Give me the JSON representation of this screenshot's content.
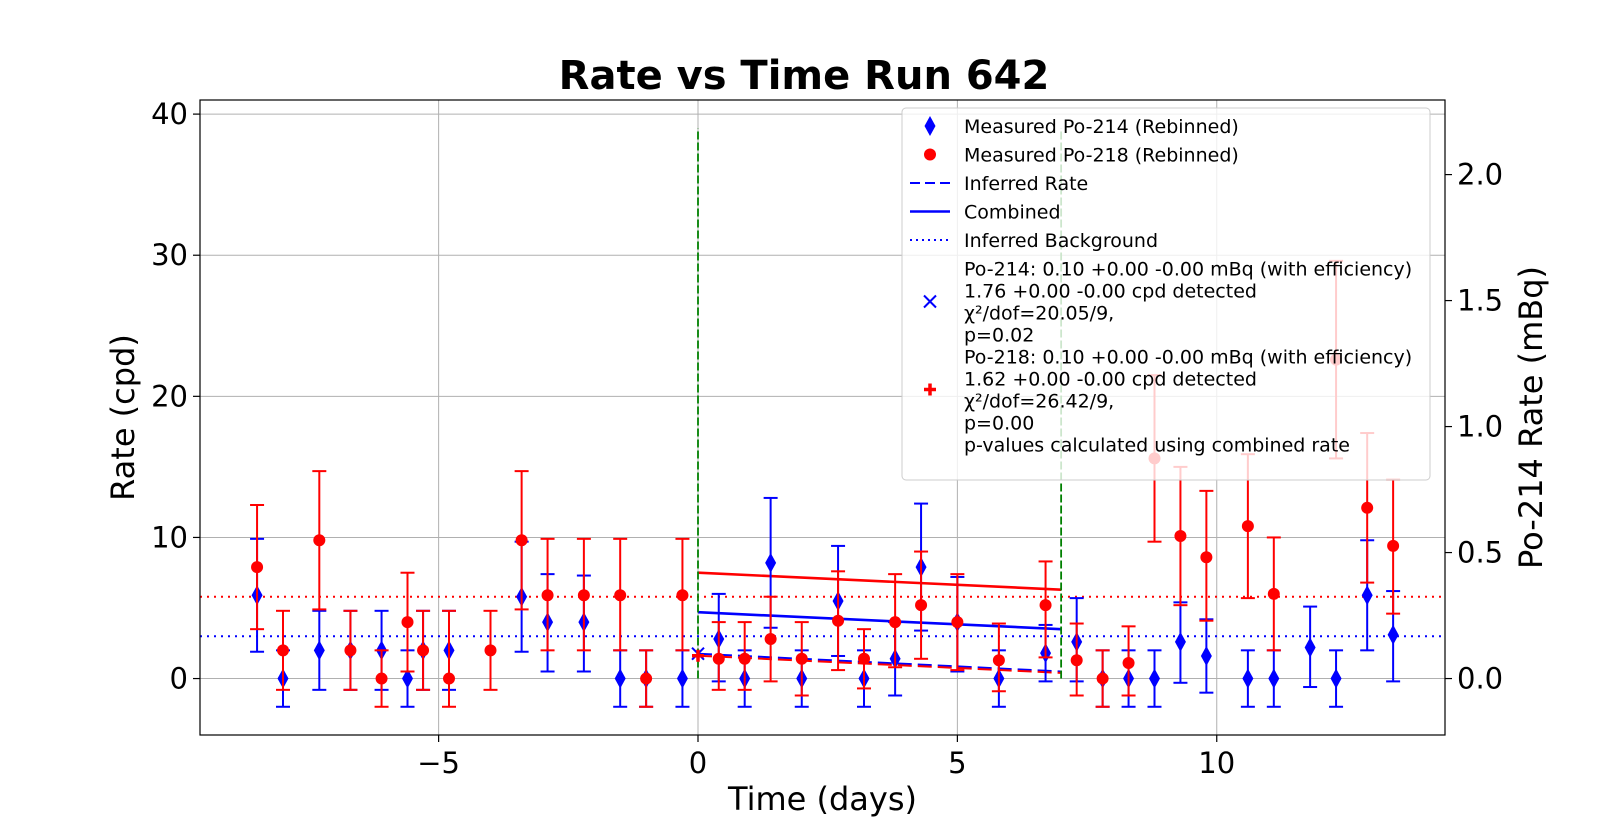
{
  "chart_data": {
    "type": "scatter",
    "title": "Rate vs Time Run 642",
    "xlabel": "Time (days)",
    "ylabel": "Rate (cpd)",
    "y2label": "Po-214 Rate (mBq)",
    "xlim": [
      -9.6,
      14.4
    ],
    "ylim": [
      -4,
      41
    ],
    "y2lim": [
      -0.224,
      2.296
    ],
    "xticks": [
      -5,
      0,
      5,
      10
    ],
    "xtick_labels": [
      "−5",
      "0",
      "5",
      "10"
    ],
    "yticks": [
      0,
      10,
      20,
      30,
      40
    ],
    "ytick_labels": [
      "0",
      "10",
      "20",
      "30",
      "40"
    ],
    "y2ticks": [
      0.0,
      0.5,
      1.0,
      1.5,
      2.0
    ],
    "y2tick_labels": [
      "0.0",
      "0.5",
      "1.0",
      "1.5",
      "2.0"
    ],
    "grid": true,
    "legend_position": "upper right",
    "series": [
      {
        "name": "Measured Po-214 (Rebinned)",
        "color": "#0000ff",
        "marker": "diamond",
        "x": [
          -8.5,
          -8.0,
          -7.3,
          -6.7,
          -6.1,
          -5.6,
          -5.3,
          -4.8,
          -3.4,
          -2.9,
          -2.2,
          -1.5,
          -1.0,
          -0.3,
          0.4,
          0.9,
          1.4,
          2.0,
          2.7,
          3.2,
          3.8,
          4.3,
          5.0,
          5.8,
          6.7,
          7.3,
          7.8,
          8.3,
          8.8,
          9.3,
          9.8,
          10.6,
          11.1,
          11.8,
          12.3,
          12.9,
          13.4
        ],
        "y": [
          5.9,
          0.0,
          2.0,
          2.0,
          2.0,
          0.0,
          2.0,
          2.0,
          5.8,
          4.0,
          4.0,
          0.0,
          0.0,
          0.0,
          2.8,
          0.0,
          8.2,
          0.0,
          5.5,
          0.0,
          1.4,
          7.9,
          4.0,
          0.0,
          1.8,
          2.6,
          0.0,
          0.0,
          0.0,
          2.6,
          1.6,
          0.0,
          0.0,
          2.2,
          0.0,
          5.9,
          3.1
        ],
        "yerr_low": [
          4.0,
          2.0,
          2.8,
          2.8,
          2.8,
          2.0,
          2.8,
          2.8,
          3.9,
          3.5,
          3.5,
          2.0,
          2.0,
          2.0,
          3.0,
          2.0,
          4.6,
          2.0,
          3.9,
          2.0,
          2.6,
          4.5,
          3.5,
          2.0,
          2.0,
          2.8,
          2.0,
          2.0,
          2.0,
          2.9,
          2.6,
          2.0,
          2.0,
          2.8,
          2.0,
          3.9,
          3.3
        ],
        "yerr_high": [
          4.0,
          2.0,
          2.8,
          2.8,
          2.8,
          2.0,
          2.8,
          2.8,
          3.9,
          3.4,
          3.3,
          2.0,
          2.0,
          2.0,
          3.2,
          2.0,
          4.6,
          2.0,
          3.9,
          2.0,
          2.6,
          4.5,
          3.2,
          2.0,
          2.0,
          3.1,
          2.0,
          2.0,
          2.0,
          2.8,
          2.6,
          2.0,
          2.0,
          2.9,
          2.0,
          3.9,
          3.1
        ]
      },
      {
        "name": "Measured Po-218 (Rebinned)",
        "color": "#ff0000",
        "marker": "circle",
        "x": [
          -8.5,
          -8.0,
          -7.3,
          -6.7,
          -6.1,
          -5.6,
          -5.3,
          -4.8,
          -4.0,
          -3.4,
          -2.9,
          -2.2,
          -1.5,
          -1.0,
          -0.3,
          0.4,
          0.9,
          1.4,
          2.0,
          2.7,
          3.2,
          3.8,
          4.3,
          5.0,
          5.8,
          6.7,
          7.3,
          7.8,
          8.3,
          8.8,
          9.3,
          9.8,
          10.6,
          11.1,
          12.3,
          12.9,
          13.4
        ],
        "y": [
          7.9,
          2.0,
          9.8,
          2.0,
          0.0,
          4.0,
          2.0,
          0.0,
          2.0,
          9.8,
          5.9,
          5.9,
          5.9,
          0.0,
          5.9,
          1.4,
          1.4,
          2.8,
          1.4,
          4.1,
          1.4,
          4.0,
          5.2,
          4.0,
          1.3,
          5.2,
          1.3,
          0.0,
          1.1,
          15.6,
          10.1,
          8.6,
          10.8,
          6.0,
          22.6,
          12.1,
          9.4
        ],
        "yerr_low": [
          4.4,
          2.8,
          4.9,
          2.8,
          2.0,
          3.5,
          2.8,
          2.0,
          2.8,
          4.9,
          3.9,
          3.9,
          3.9,
          2.0,
          3.9,
          2.2,
          2.2,
          3.0,
          2.6,
          3.5,
          2.1,
          3.2,
          3.8,
          3.4,
          2.2,
          3.7,
          2.5,
          2.0,
          2.3,
          5.9,
          4.9,
          4.5,
          5.1,
          4.0,
          7.0,
          5.3,
          4.8
        ],
        "yerr_high": [
          4.4,
          2.8,
          4.9,
          2.8,
          2.0,
          3.5,
          2.8,
          4.8,
          2.8,
          4.9,
          4.0,
          4.0,
          4.0,
          2.0,
          4.0,
          2.6,
          2.6,
          3.0,
          2.6,
          3.5,
          2.1,
          3.4,
          3.8,
          3.4,
          2.6,
          3.1,
          2.6,
          2.0,
          2.6,
          5.9,
          4.9,
          4.7,
          5.1,
          4.0,
          7.0,
          5.3,
          4.7
        ]
      }
    ],
    "lines": [
      {
        "name": "Inferred Rate",
        "color": "#0000ff",
        "style": "dashed",
        "x": [
          0,
          7
        ],
        "y": [
          1.76,
          0.5
        ]
      },
      {
        "name": "Inferred Rate",
        "color": "#ff0000",
        "style": "dashed",
        "x": [
          0,
          7
        ],
        "y": [
          1.62,
          0.4
        ]
      },
      {
        "name": "Combined",
        "color": "#0000ff",
        "style": "solid",
        "x": [
          0,
          7
        ],
        "y": [
          4.7,
          3.5
        ]
      },
      {
        "name": "Combined",
        "color": "#ff0000",
        "style": "solid",
        "x": [
          0,
          7
        ],
        "y": [
          7.5,
          6.3
        ]
      },
      {
        "name": "Inferred Background",
        "color": "#0000ff",
        "style": "dotted",
        "y_const": 3.0
      },
      {
        "name": "Inferred Background",
        "color": "#ff0000",
        "style": "dotted",
        "y_const": 5.8
      }
    ],
    "vlines": [
      {
        "x": 0,
        "color": "#008000",
        "style": "dashed",
        "y_range": [
          0,
          39
        ]
      },
      {
        "x": 7,
        "color": "#008000",
        "style": "dashed",
        "y_range": [
          0,
          39
        ]
      }
    ],
    "fit_points": [
      {
        "x": 0,
        "y": 1.76,
        "color": "#0000ff",
        "marker": "x"
      },
      {
        "x": 0,
        "y": 1.62,
        "color": "#ff0000",
        "marker": "plus"
      }
    ],
    "legend": [
      {
        "label": "Measured Po-214 (Rebinned)",
        "kind": "diamond",
        "color": "#0000ff"
      },
      {
        "label": "Measured Po-218 (Rebinned)",
        "kind": "circle",
        "color": "#ff0000"
      },
      {
        "label": "Inferred Rate",
        "kind": "dashed",
        "color": "#0000ff"
      },
      {
        "label": "Combined",
        "kind": "solid",
        "color": "#0000ff"
      },
      {
        "label": "Inferred Background",
        "kind": "dotted",
        "color": "#0000ff"
      },
      {
        "lines": [
          "Po-214: 0.10 +0.00 -0.00 mBq (with efficiency)",
          " 1.76 +0.00 -0.00 cpd detected",
          "χ²/dof=20.05/9,",
          "p=0.02"
        ],
        "kind": "x",
        "color": "#0000ff"
      },
      {
        "lines": [
          "Po-218: 0.10 +0.00 -0.00 mBq (with efficiency)",
          " 1.62 +0.00 -0.00 cpd detected",
          "χ²/dof=26.42/9,",
          "p=0.00"
        ],
        "kind": "plus",
        "color": "#ff0000"
      },
      {
        "label": "p-values calculated using combined rate",
        "kind": "none",
        "color": "#000000"
      }
    ]
  }
}
